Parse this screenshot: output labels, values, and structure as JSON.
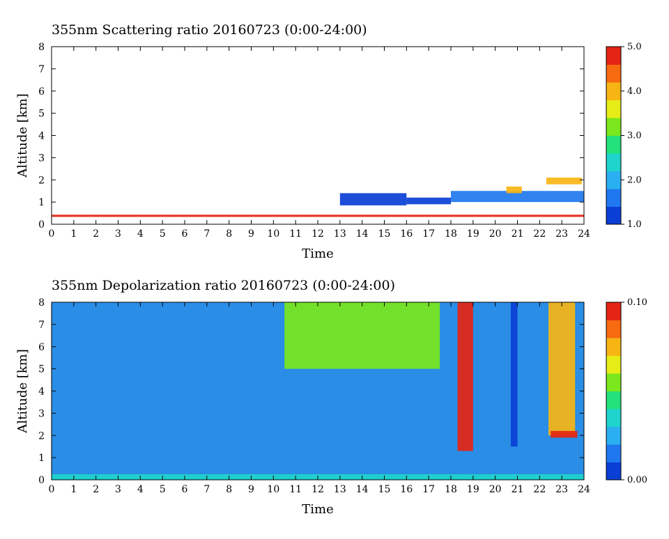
{
  "colors": {
    "colormap": [
      "#0a3fd6",
      "#1f78ef",
      "#2aaff0",
      "#1fd4cc",
      "#22e07a",
      "#7ae81c",
      "#e6ec16",
      "#f7b514",
      "#f76a10",
      "#e42414"
    ],
    "background_scatter": "#ffffff",
    "background_depol": "#2a8de6"
  },
  "chart_data": [
    {
      "type": "heatmap",
      "title": "355nm Scattering ratio  20160723 (0:00-24:00)",
      "xlabel": "Time",
      "ylabel": "Altitude [km]",
      "xlim": [
        0,
        24
      ],
      "ylim": [
        0,
        8
      ],
      "x_ticks": [
        "0",
        "1",
        "2",
        "3",
        "4",
        "5",
        "6",
        "7",
        "8",
        "9",
        "10",
        "11",
        "12",
        "13",
        "14",
        "15",
        "16",
        "17",
        "18",
        "19",
        "20",
        "21",
        "22",
        "23",
        "24"
      ],
      "y_ticks": [
        "0",
        "1",
        "2",
        "3",
        "4",
        "5",
        "6",
        "7",
        "8"
      ],
      "colorbar": {
        "min": 1.0,
        "max": 5.0,
        "ticks": [
          "1.0",
          "2.0",
          "3.0",
          "4.0",
          "5.0"
        ],
        "tick_values": [
          1,
          2,
          3,
          4,
          5
        ]
      },
      "features": [
        {
          "t_start": 0,
          "t_end": 24,
          "alt_bottom": 0.33,
          "alt_top": 0.43,
          "value": 5.0
        },
        {
          "t_start": 13.0,
          "t_end": 16.0,
          "alt_bottom": 0.85,
          "alt_top": 1.4,
          "value": 1.2
        },
        {
          "t_start": 16.0,
          "t_end": 18.0,
          "alt_bottom": 0.9,
          "alt_top": 1.2,
          "value": 1.2
        },
        {
          "t_start": 18.0,
          "t_end": 24.0,
          "alt_bottom": 1.0,
          "alt_top": 1.5,
          "value": 1.5
        },
        {
          "t_start": 20.5,
          "t_end": 21.2,
          "alt_bottom": 1.4,
          "alt_top": 1.7,
          "value": 4.0
        },
        {
          "t_start": 22.3,
          "t_end": 23.9,
          "alt_bottom": 1.8,
          "alt_top": 2.1,
          "value": 4.0
        }
      ]
    },
    {
      "type": "heatmap",
      "title": "355nm Depolarization ratio  20160723 (0:00-24:00)",
      "xlabel": "Time",
      "ylabel": "Altitude [km]",
      "xlim": [
        0,
        24
      ],
      "ylim": [
        0,
        8
      ],
      "x_ticks": [
        "0",
        "1",
        "2",
        "3",
        "4",
        "5",
        "6",
        "7",
        "8",
        "9",
        "10",
        "11",
        "12",
        "13",
        "14",
        "15",
        "16",
        "17",
        "18",
        "19",
        "20",
        "21",
        "22",
        "23",
        "24"
      ],
      "y_ticks": [
        "0",
        "1",
        "2",
        "3",
        "4",
        "5",
        "6",
        "7",
        "8"
      ],
      "colorbar": {
        "min": 0.0,
        "max": 0.1,
        "ticks": [
          "0.00",
          "0.10"
        ],
        "tick_values": [
          0.0,
          0.1
        ]
      },
      "features": [
        {
          "t_start": 0,
          "t_end": 24,
          "alt_bottom": 0.0,
          "alt_top": 0.25,
          "value": 0.035
        },
        {
          "t_start": 10.5,
          "t_end": 17.5,
          "alt_bottom": 5.0,
          "alt_top": 8.0,
          "value": 0.055
        },
        {
          "t_start": 18.3,
          "t_end": 19.0,
          "alt_bottom": 1.3,
          "alt_top": 8.0,
          "value": 0.09
        },
        {
          "t_start": 20.7,
          "t_end": 21.0,
          "alt_bottom": 1.5,
          "alt_top": 8.0,
          "value": 0.005
        },
        {
          "t_start": 22.4,
          "t_end": 23.6,
          "alt_bottom": 2.0,
          "alt_top": 8.0,
          "value": 0.07
        },
        {
          "t_start": 22.5,
          "t_end": 23.7,
          "alt_bottom": 1.9,
          "alt_top": 2.2,
          "value": 0.095
        }
      ]
    }
  ]
}
